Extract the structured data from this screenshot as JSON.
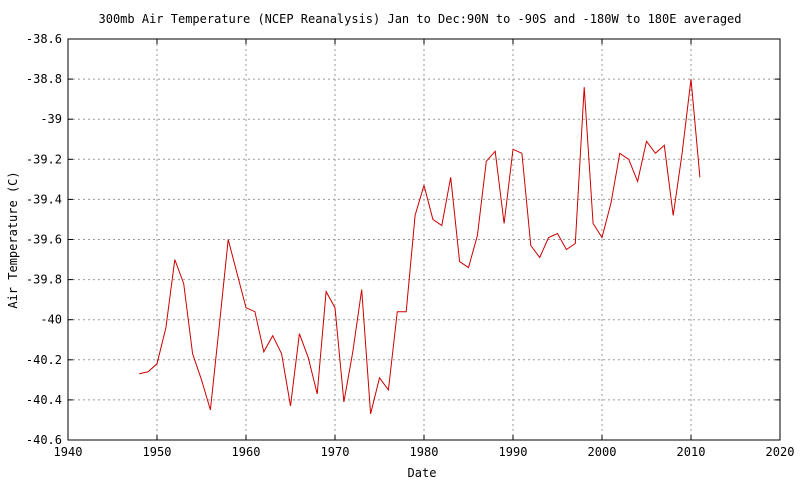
{
  "chart_data": {
    "type": "line",
    "title": "300mb Air Temperature (NCEP Reanalysis) Jan to Dec:90N to -90S and -180W to 180E averaged",
    "xlabel": "Date",
    "ylabel": "Air Temperature (C)",
    "xlim": [
      1940,
      2020
    ],
    "ylim": [
      -40.6,
      -38.6
    ],
    "x_ticks": [
      1940,
      1950,
      1960,
      1970,
      1980,
      1990,
      2000,
      2010,
      2020
    ],
    "y_ticks": [
      -38.6,
      -38.8,
      -39,
      -39.2,
      -39.4,
      -39.6,
      -39.8,
      -40,
      -40.2,
      -40.4,
      -40.6
    ],
    "x_tick_labels": [
      "1940",
      "1950",
      "1960",
      "1970",
      "1980",
      "1990",
      "2000",
      "2010",
      "2020"
    ],
    "y_tick_labels": [
      "-38.6",
      "-38.8",
      "-39",
      "-39.2",
      "-39.4",
      "-39.6",
      "-39.8",
      "-40",
      "-40.2",
      "-40.4",
      "-40.6"
    ],
    "grid": true,
    "series_color": "#cc0000",
    "series": [
      {
        "x": [
          1948,
          1949,
          1950,
          1951,
          1952,
          1953,
          1954,
          1955,
          1956,
          1957,
          1958,
          1959,
          1960,
          1961,
          1962,
          1963,
          1964,
          1965,
          1966,
          1967,
          1968,
          1969,
          1970,
          1971,
          1972,
          1973,
          1974,
          1975,
          1976,
          1977,
          1978,
          1979,
          1980,
          1981,
          1982,
          1983,
          1984,
          1985,
          1986,
          1987,
          1988,
          1989,
          1990,
          1991,
          1992,
          1993,
          1994,
          1995,
          1996,
          1997,
          1998,
          1999,
          2000,
          2001,
          2002,
          2003,
          2004,
          2005,
          2006,
          2007,
          2008,
          2009,
          2010,
          2011
        ],
        "y": [
          -40.27,
          -40.26,
          -40.22,
          -40.04,
          -39.7,
          -39.82,
          -40.17,
          -40.3,
          -40.45,
          -40.03,
          -39.6,
          -39.77,
          -39.94,
          -39.96,
          -40.16,
          -40.08,
          -40.17,
          -40.43,
          -40.07,
          -40.19,
          -40.37,
          -39.86,
          -39.94,
          -40.41,
          -40.16,
          -39.85,
          -40.47,
          -40.29,
          -40.35,
          -39.96,
          -39.96,
          -39.48,
          -39.33,
          -39.5,
          -39.53,
          -39.29,
          -39.71,
          -39.74,
          -39.58,
          -39.21,
          -39.16,
          -39.52,
          -39.15,
          -39.17,
          -39.63,
          -39.69,
          -39.59,
          -39.57,
          -39.65,
          -39.62,
          -38.84,
          -39.52,
          -39.59,
          -39.42,
          -39.17,
          -39.2,
          -39.31,
          -39.11,
          -39.17,
          -39.13,
          -39.48,
          -39.17,
          -38.8,
          -39.29
        ]
      }
    ]
  }
}
